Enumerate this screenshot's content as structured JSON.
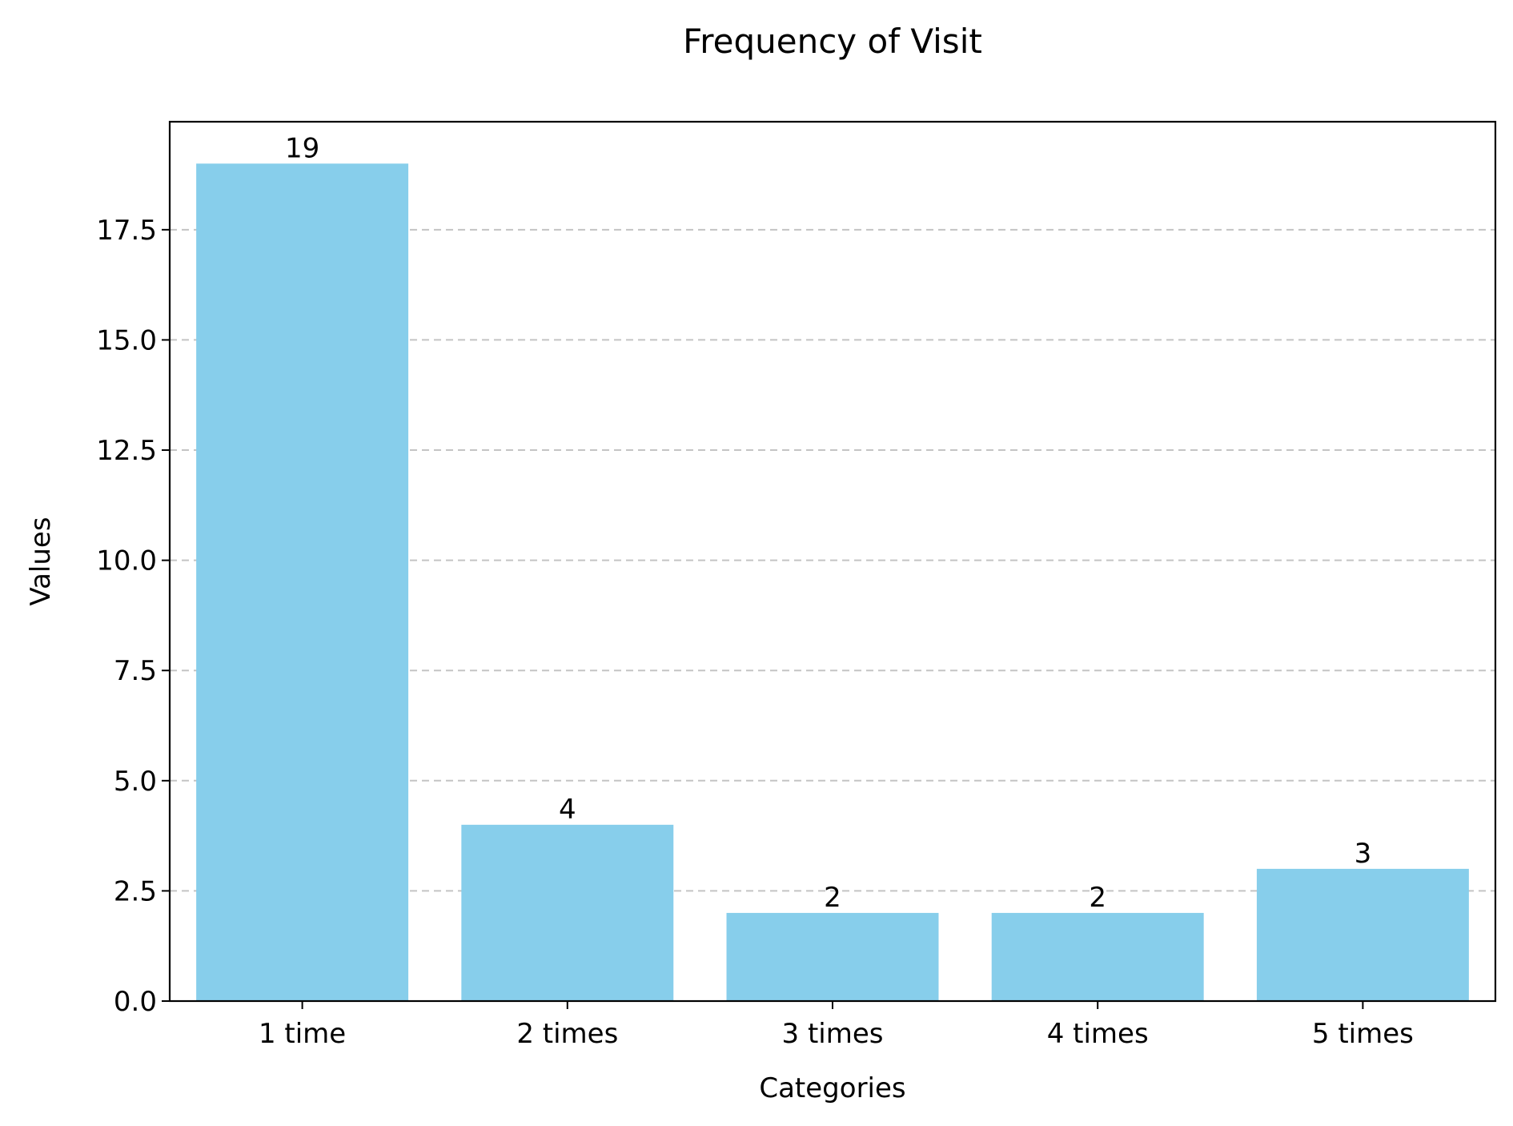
{
  "chart_data": {
    "type": "bar",
    "title": "Frequency of Visit",
    "xlabel": "Categories",
    "ylabel": "Values",
    "categories": [
      "1 time",
      "2 times",
      "3 times",
      "4 times",
      "5 times"
    ],
    "values": [
      19,
      4,
      2,
      2,
      3
    ],
    "data_labels": [
      "19",
      "4",
      "2",
      "2",
      "3"
    ],
    "ylim": [
      0,
      19.95
    ],
    "yticks": [
      0,
      2.5,
      5,
      7.5,
      10,
      12.5,
      15,
      17.5
    ],
    "ytick_labels": [
      "0.0",
      "2.5",
      "5.0",
      "7.5",
      "10.0",
      "12.5",
      "15.0",
      "17.5"
    ],
    "grid": "y-dashed",
    "legend": "none",
    "bar_color": "#87ceeb"
  }
}
